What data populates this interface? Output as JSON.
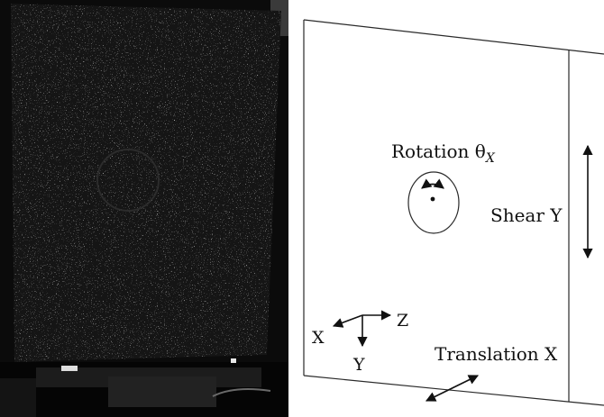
{
  "labels": {
    "rotation": "Rotation θ",
    "rotation_subscript": "X",
    "shear": "Shear Y",
    "translation": "Translation X",
    "axis_x": "X",
    "axis_y": "Y",
    "axis_z": "Z"
  },
  "colors": {
    "photo_dark": "#0b0b0b",
    "diagram_line": "#2a2a2a",
    "background": "#ffffff"
  }
}
